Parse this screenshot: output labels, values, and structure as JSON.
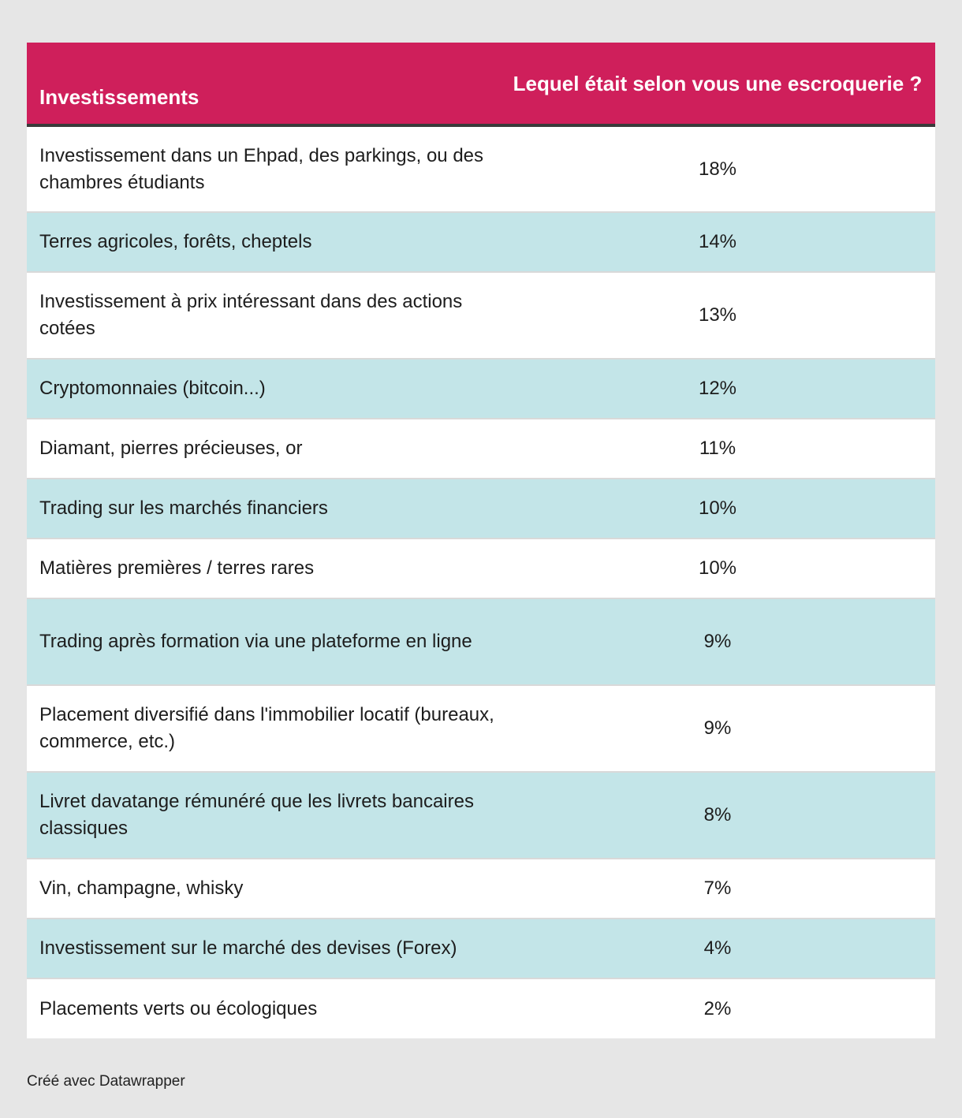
{
  "colors": {
    "header_bg": "#cf1f5b",
    "header_text": "#ffffff",
    "row_alt_bg": "#c3e5e8",
    "row_bg": "#ffffff",
    "page_bg": "#e6e6e6"
  },
  "chart_data": {
    "type": "table",
    "columns": [
      "Investissements",
      "Lequel était selon vous une escroquerie ?"
    ],
    "rows": [
      {
        "label": "Investissement dans un Ehpad, des parkings, ou des chambres étudiants",
        "value": "18%"
      },
      {
        "label": "Terres agricoles, forêts, cheptels",
        "value": "14%"
      },
      {
        "label": "Investissement à prix intéressant dans des actions cotées",
        "value": "13%"
      },
      {
        "label": "Cryptomonnaies (bitcoin...)",
        "value": "12%"
      },
      {
        "label": "Diamant, pierres précieuses, or",
        "value": "11%"
      },
      {
        "label": "Trading sur les marchés financiers",
        "value": "10%"
      },
      {
        "label": "Matières premières / terres rares",
        "value": "10%"
      },
      {
        "label": "Trading après formation via une plateforme en ligne",
        "value": "9%"
      },
      {
        "label": "Placement diversifié dans l'immobilier locatif (bureaux, commerce, etc.)",
        "value": "9%"
      },
      {
        "label": "Livret davatange rémunéré que les livrets bancaires classiques",
        "value": "8%"
      },
      {
        "label": "Vin, champagne, whisky",
        "value": "7%"
      },
      {
        "label": "Investissement sur le marché des devises (Forex)",
        "value": "4%"
      },
      {
        "label": "Placements verts ou écologiques",
        "value": "2%"
      }
    ]
  },
  "footer": {
    "credit": "Créé avec Datawrapper"
  }
}
